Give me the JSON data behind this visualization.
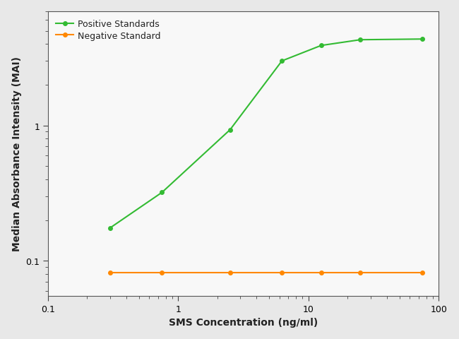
{
  "positive_x": [
    0.3,
    0.75,
    2.5,
    6.25,
    12.5,
    25,
    75
  ],
  "positive_y": [
    0.175,
    0.32,
    0.93,
    3.0,
    3.9,
    4.3,
    4.35
  ],
  "negative_x": [
    0.3,
    0.75,
    2.5,
    6.25,
    12.5,
    25,
    75
  ],
  "negative_y": [
    0.082,
    0.082,
    0.082,
    0.082,
    0.082,
    0.082,
    0.082
  ],
  "positive_color": "#33bb33",
  "negative_color": "#ff8800",
  "positive_label": "Positive Standards",
  "negative_label": "Negative Standard",
  "xlabel": "SMS Concentration (ng/ml)",
  "ylabel": "Median Absorbance Intensity (MAI)",
  "xlim": [
    0.18,
    100
  ],
  "ylim": [
    0.055,
    7.0
  ],
  "background_color": "#e8e8e8",
  "plot_background": "#f8f8f8",
  "marker": "o",
  "markersize": 4,
  "linewidth": 1.5,
  "xticks": [
    0.1,
    1,
    10,
    100
  ],
  "xtick_labels": [
    "0.1",
    "1",
    "10",
    "100"
  ],
  "yticks": [
    0.1,
    1
  ],
  "ytick_labels": [
    "0.1",
    "1"
  ]
}
